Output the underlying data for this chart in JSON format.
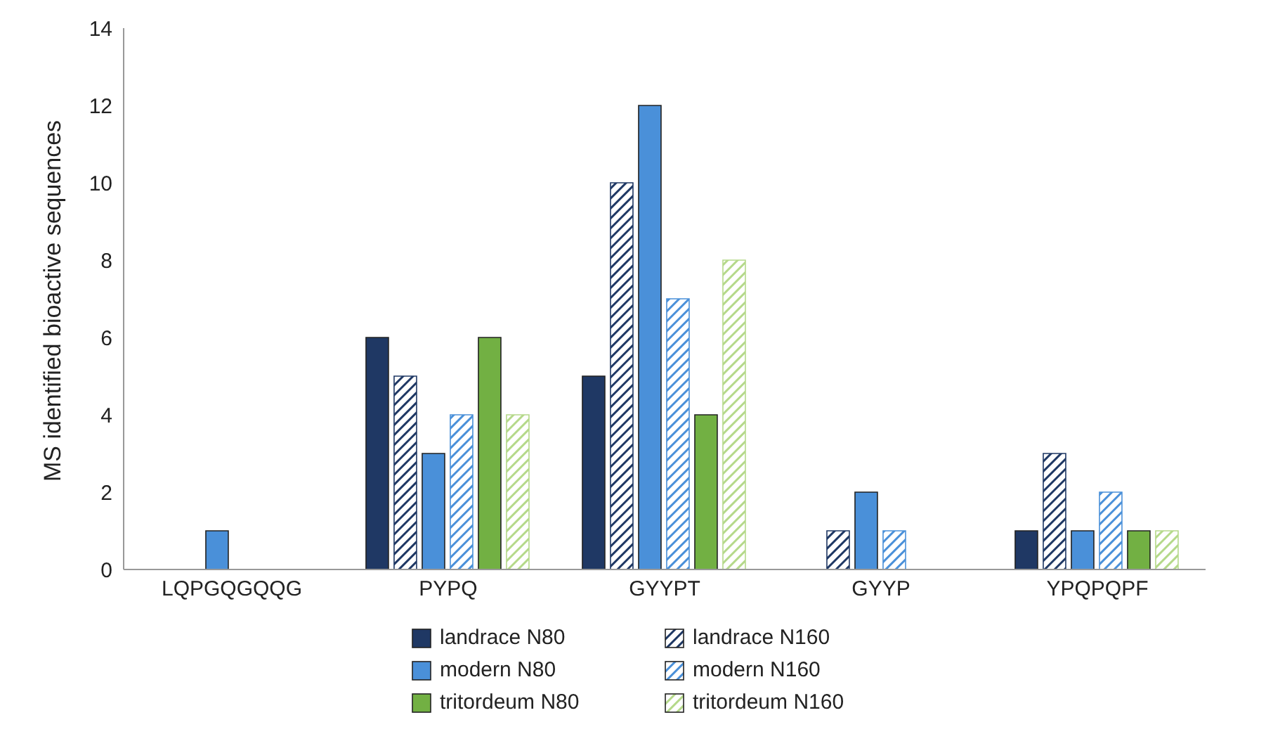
{
  "chart_data": {
    "type": "bar",
    "ylabel": "MS identified bioactive  sequences",
    "categories": [
      "LQPGQGQQG",
      "PYPQ",
      "GYYPT",
      "GYYP",
      "YPQPQPF"
    ],
    "series": [
      {
        "name": "landrace N80",
        "color": "#1f3864",
        "values": [
          0,
          6,
          5,
          0,
          1
        ]
      },
      {
        "name": "landrace N160",
        "color": "#1f3864",
        "values": [
          0,
          5,
          10,
          1,
          3
        ]
      },
      {
        "name": "modern N80",
        "color": "#4a90d9",
        "values": [
          1,
          3,
          12,
          2,
          1
        ]
      },
      {
        "name": "modern N160",
        "color": "#4a90d9",
        "values": [
          0,
          4,
          7,
          1,
          2
        ]
      },
      {
        "name": "tritordeum N80",
        "color": "#72b043",
        "values": [
          0,
          6,
          4,
          0,
          1
        ]
      },
      {
        "name": "tritordeum N160",
        "color": "#b5d98a",
        "values": [
          0,
          4,
          8,
          0,
          1
        ]
      }
    ],
    "ylim": [
      0,
      14
    ],
    "yticks": [
      0,
      2,
      4,
      6,
      8,
      10,
      12,
      14
    ],
    "legend": "bottom"
  }
}
